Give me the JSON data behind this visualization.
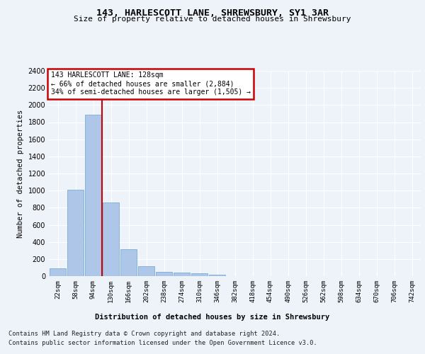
{
  "title_line1": "143, HARLESCOTT LANE, SHREWSBURY, SY1 3AR",
  "title_line2": "Size of property relative to detached houses in Shrewsbury",
  "xlabel": "Distribution of detached houses by size in Shrewsbury",
  "ylabel": "Number of detached properties",
  "bar_labels": [
    "22sqm",
    "58sqm",
    "94sqm",
    "130sqm",
    "166sqm",
    "202sqm",
    "238sqm",
    "274sqm",
    "310sqm",
    "346sqm",
    "382sqm",
    "418sqm",
    "454sqm",
    "490sqm",
    "526sqm",
    "562sqm",
    "598sqm",
    "634sqm",
    "670sqm",
    "706sqm",
    "742sqm"
  ],
  "bar_values": [
    90,
    1010,
    1890,
    860,
    315,
    115,
    50,
    40,
    30,
    18,
    0,
    0,
    0,
    0,
    0,
    0,
    0,
    0,
    0,
    0,
    0
  ],
  "bar_color": "#aec6e8",
  "bar_edge_color": "#7aaed6",
  "ylim": [
    0,
    2400
  ],
  "yticks": [
    0,
    200,
    400,
    600,
    800,
    1000,
    1200,
    1400,
    1600,
    1800,
    2000,
    2200,
    2400
  ],
  "vline_x_idx": 3,
  "vline_color": "#cc0000",
  "annotation_line1": "143 HARLESCOTT LANE: 128sqm",
  "annotation_line2": "← 66% of detached houses are smaller (2,884)",
  "annotation_line3": "34% of semi-detached houses are larger (1,505) →",
  "annotation_box_color": "#ffffff",
  "annotation_box_edge": "#cc0000",
  "footer_line1": "Contains HM Land Registry data © Crown copyright and database right 2024.",
  "footer_line2": "Contains public sector information licensed under the Open Government Licence v3.0.",
  "bg_color": "#eef2f9",
  "plot_bg_color": "#eef2f9",
  "grid_color": "#ffffff"
}
